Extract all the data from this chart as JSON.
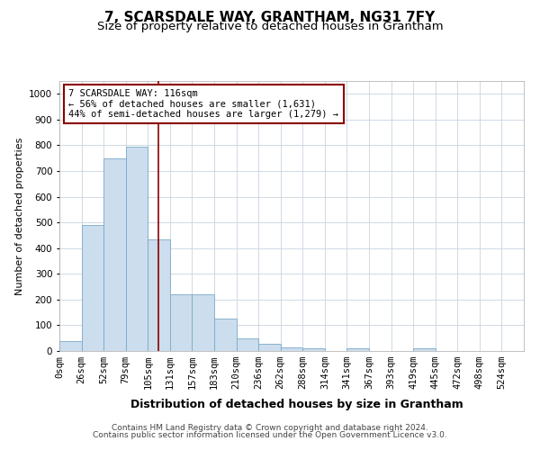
{
  "title": "7, SCARSDALE WAY, GRANTHAM, NG31 7FY",
  "subtitle": "Size of property relative to detached houses in Grantham",
  "xlabel": "Distribution of detached houses by size in Grantham",
  "ylabel": "Number of detached properties",
  "bar_labels": [
    "0sqm",
    "26sqm",
    "52sqm",
    "79sqm",
    "105sqm",
    "131sqm",
    "157sqm",
    "183sqm",
    "210sqm",
    "236sqm",
    "262sqm",
    "288sqm",
    "314sqm",
    "341sqm",
    "367sqm",
    "393sqm",
    "419sqm",
    "445sqm",
    "472sqm",
    "498sqm",
    "524sqm"
  ],
  "bar_values": [
    40,
    490,
    750,
    795,
    435,
    220,
    220,
    125,
    50,
    27,
    14,
    10,
    0,
    10,
    0,
    0,
    10,
    0,
    0,
    0,
    0
  ],
  "bar_color": "#ccdded",
  "bar_edge_color": "#7aaac8",
  "annotation_box_text": "7 SCARSDALE WAY: 116sqm\n← 56% of detached houses are smaller (1,631)\n44% of semi-detached houses are larger (1,279) →",
  "red_line_x": 116,
  "ylim": [
    0,
    1050
  ],
  "yticks": [
    0,
    100,
    200,
    300,
    400,
    500,
    600,
    700,
    800,
    900,
    1000
  ],
  "grid_color": "#c8d4e0",
  "footer_line1": "Contains HM Land Registry data © Crown copyright and database right 2024.",
  "footer_line2": "Contains public sector information licensed under the Open Government Licence v3.0.",
  "title_fontsize": 11,
  "subtitle_fontsize": 9.5,
  "ylabel_fontsize": 8,
  "xlabel_fontsize": 9,
  "tick_fontsize": 7.5,
  "annotation_fontsize": 7.5,
  "footer_fontsize": 6.5,
  "bin_width": 26
}
